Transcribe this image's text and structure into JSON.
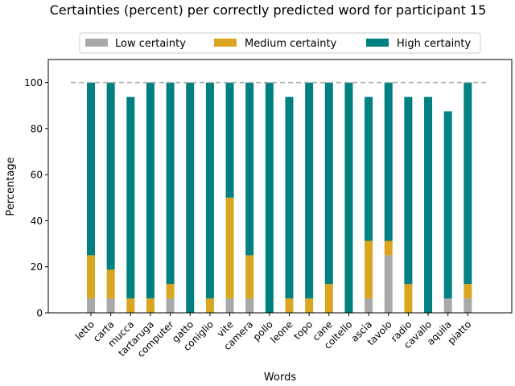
{
  "chart_data": {
    "type": "bar",
    "stacked": true,
    "title": "Certainties (percent) per correctly predicted word for participant 15",
    "xlabel": "Words",
    "ylabel": "Percentage",
    "ylim": [
      0,
      110
    ],
    "yticks": [
      0,
      20,
      40,
      60,
      80,
      100
    ],
    "reference_line": 100,
    "legend_position": "top-center",
    "categories": [
      "letto",
      "carta",
      "mucca",
      "tartaruga",
      "computer",
      "gatto",
      "coniglio",
      "vite",
      "camera",
      "pollo",
      "leone",
      "topo",
      "cane",
      "coltello",
      "ascia",
      "tavolo",
      "radio",
      "cavallo",
      "aquila",
      "piatto"
    ],
    "series": [
      {
        "name": "Low certainty",
        "color": "#a9a9a9",
        "values": [
          6.25,
          6.25,
          0,
          0,
          6.25,
          0,
          0,
          6.25,
          6.25,
          0,
          0,
          0,
          0,
          0,
          6.25,
          25,
          0,
          0,
          6.25,
          6.25
        ]
      },
      {
        "name": "Medium certainty",
        "color": "#daa520",
        "values": [
          18.75,
          12.5,
          6.25,
          6.25,
          6.25,
          0,
          6.25,
          43.75,
          18.75,
          0,
          6.25,
          6.25,
          12.5,
          0,
          25,
          6.25,
          12.5,
          0,
          0,
          6.25
        ]
      },
      {
        "name": "High certainty",
        "color": "#008080",
        "values": [
          75,
          81.25,
          87.5,
          93.75,
          87.5,
          100,
          93.75,
          50,
          75,
          100,
          87.5,
          93.75,
          87.5,
          100,
          62.5,
          68.75,
          81.25,
          93.75,
          81.25,
          87.5
        ]
      }
    ]
  }
}
